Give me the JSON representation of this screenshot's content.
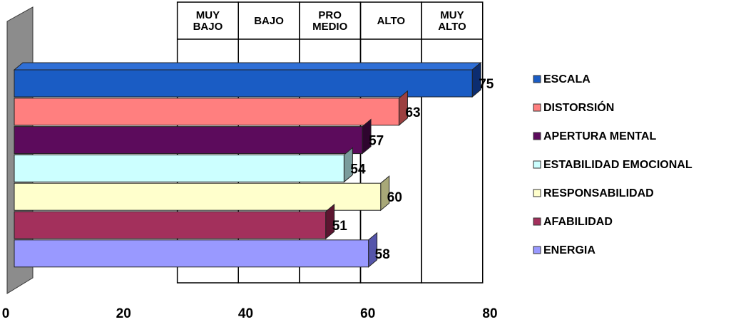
{
  "chart_data": {
    "type": "bar",
    "orientation": "horizontal",
    "xlim": [
      0,
      80
    ],
    "x_ticks": [
      "0",
      "20",
      "40",
      "60",
      "80"
    ],
    "grid": false,
    "legend_position": "right",
    "range_bands": [
      {
        "label_lines": [
          "MUY",
          "BAJO"
        ],
        "from": 26.7,
        "to": 36.7
      },
      {
        "label_lines": [
          "BAJO"
        ],
        "from": 36.7,
        "to": 46.7
      },
      {
        "label_lines": [
          "PRO",
          "MEDIO"
        ],
        "from": 46.7,
        "to": 56.7
      },
      {
        "label_lines": [
          "ALTO"
        ],
        "from": 56.7,
        "to": 66.7
      },
      {
        "label_lines": [
          "MUY",
          "ALTO"
        ],
        "from": 66.7,
        "to": 76.7
      }
    ],
    "series": [
      {
        "name": "ESCALA",
        "value": 75,
        "label": "75",
        "color": "#1a5cc4",
        "side": "#0c2d70"
      },
      {
        "name": "DISTORSIÓN",
        "value": 63,
        "label": "63",
        "color": "#ff7f7f",
        "side": "#9c4040"
      },
      {
        "name": "APERTURA MENTAL",
        "value": 57,
        "label": "57",
        "color": "#5c0b5c",
        "side": "#2e052e"
      },
      {
        "name": "ESTABILIDAD EMOCIONAL",
        "value": 54,
        "label": "54",
        "color": "#ccffff",
        "side": "#7a9c9c"
      },
      {
        "name": "RESPONSABILIDAD",
        "value": 60,
        "label": "60",
        "color": "#ffffcc",
        "side": "#a8a878"
      },
      {
        "name": "AFABILIDAD",
        "value": 51,
        "label": "51",
        "color": "#a3305c",
        "side": "#5c1530"
      },
      {
        "name": "ENERGIA",
        "value": 58,
        "label": "58",
        "color": "#9999ff",
        "side": "#5555aa"
      }
    ]
  }
}
